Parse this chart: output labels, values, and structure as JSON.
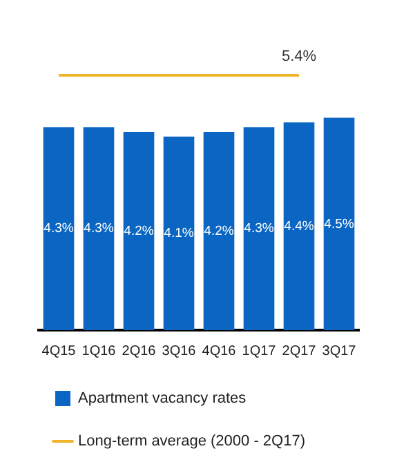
{
  "chart_data": {
    "type": "bar",
    "categories": [
      "4Q15",
      "1Q16",
      "2Q16",
      "3Q16",
      "4Q16",
      "1Q17",
      "2Q17",
      "3Q17"
    ],
    "series": [
      {
        "name": "Apartment vacancy rates",
        "color": "#0a66c2",
        "values": [
          4.3,
          4.3,
          4.2,
          4.1,
          4.2,
          4.3,
          4.4,
          4.5
        ],
        "value_labels": [
          "4.3%",
          "4.3%",
          "4.2%",
          "4.1%",
          "4.2%",
          "4.3%",
          "4.4%",
          "4.5%"
        ]
      },
      {
        "name": "Long-term average (2000 - 2Q17)",
        "type": "line",
        "color": "#f0b429",
        "marker": "none",
        "values": [
          5.4,
          5.4,
          5.4,
          5.4,
          5.4,
          5.4,
          5.4,
          null
        ],
        "value_labels": [
          null,
          null,
          null,
          null,
          null,
          null,
          "5.4%",
          null
        ]
      }
    ],
    "grid": false,
    "legend": "bottom"
  }
}
